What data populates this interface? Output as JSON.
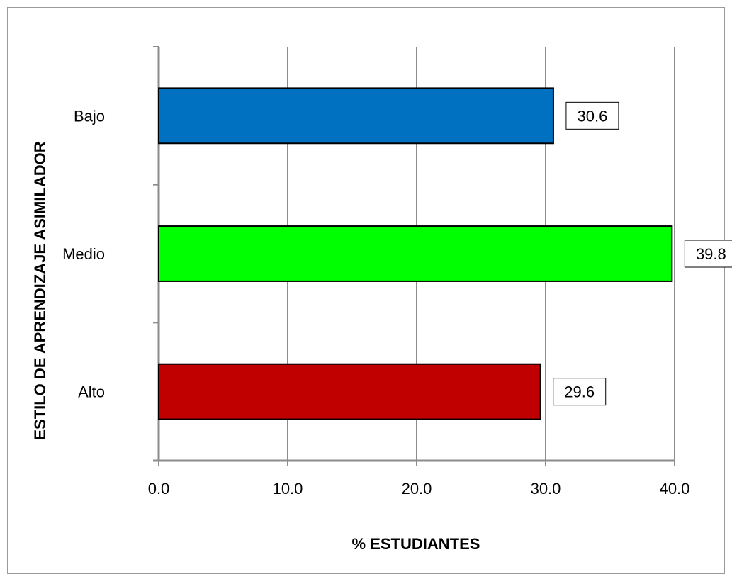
{
  "chart_data": {
    "type": "bar",
    "orientation": "horizontal",
    "categories": [
      "Bajo",
      "Medio",
      "Alto"
    ],
    "values": [
      30.6,
      39.8,
      29.6
    ],
    "data_labels": [
      "30.6",
      "39.8",
      "29.6"
    ],
    "colors": [
      "#0070c0",
      "#00ff00",
      "#c00000"
    ],
    "xlabel": "% ESTUDIANTES",
    "ylabel": "ESTILO DE APRENDIZAJE ASIMILADOR",
    "xlim": [
      0,
      40
    ],
    "x_ticks": [
      "0.0",
      "10.0",
      "20.0",
      "30.0",
      "40.0"
    ],
    "x_tick_values": [
      0,
      10,
      20,
      30,
      40
    ],
    "grid": "vertical",
    "legend": "none"
  }
}
